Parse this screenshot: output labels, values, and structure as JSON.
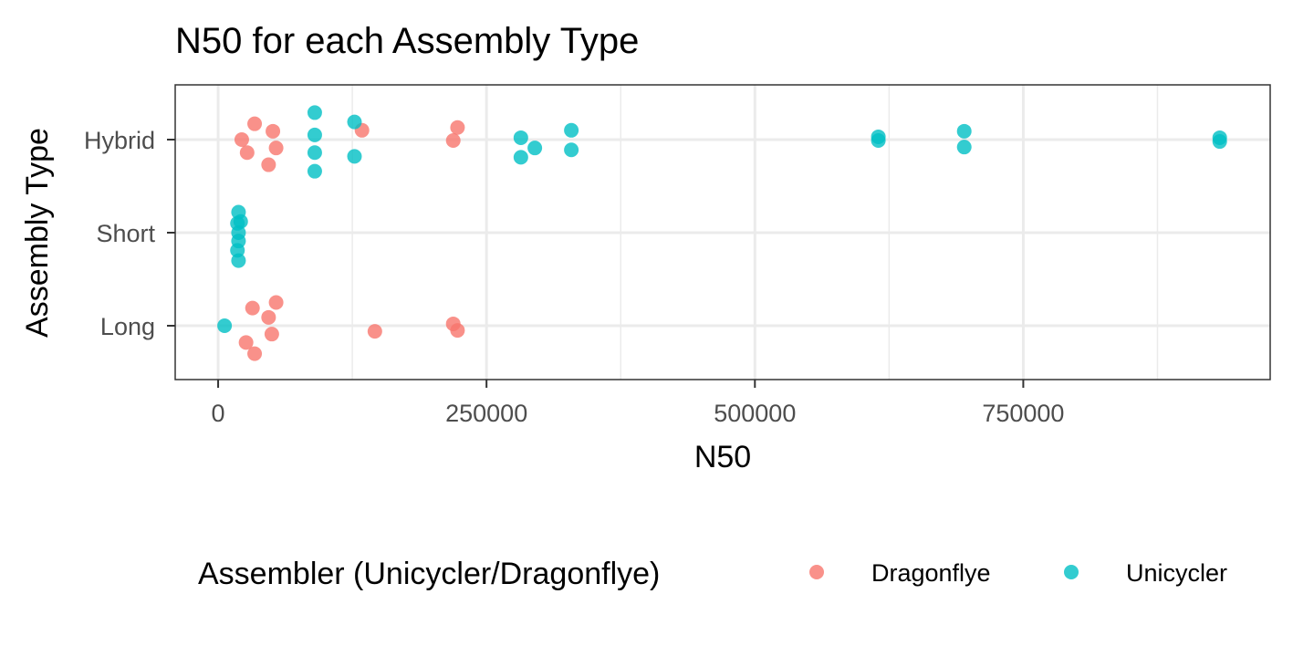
{
  "chart_data": {
    "type": "scatter",
    "title": "N50 for each Assembly Type",
    "xlabel": "N50",
    "ylabel": "Assembly Type",
    "categories": [
      "Long",
      "Short",
      "Hybrid"
    ],
    "xlim": [
      -40000,
      980000
    ],
    "x_ticks": [
      0,
      250000,
      500000,
      750000
    ],
    "x_tick_labels": [
      "0",
      "250000",
      "500000",
      "750000"
    ],
    "grid": true,
    "legend_title": "Assembler (Unicycler/Dragonflye)",
    "legend_position": "bottom",
    "series": [
      {
        "name": "Dragonflye",
        "color": "#F8766D",
        "points": [
          {
            "category": "Hybrid",
            "x": 34000,
            "jitter": 0.17
          },
          {
            "category": "Hybrid",
            "x": 51000,
            "jitter": 0.09
          },
          {
            "category": "Hybrid",
            "x": 22000,
            "jitter": 0.0
          },
          {
            "category": "Hybrid",
            "x": 54000,
            "jitter": -0.09
          },
          {
            "category": "Hybrid",
            "x": 27000,
            "jitter": -0.14
          },
          {
            "category": "Hybrid",
            "x": 47000,
            "jitter": -0.27
          },
          {
            "category": "Hybrid",
            "x": 134000,
            "jitter": 0.1
          },
          {
            "category": "Hybrid",
            "x": 223000,
            "jitter": 0.13
          },
          {
            "category": "Hybrid",
            "x": 219000,
            "jitter": -0.01
          },
          {
            "category": "Long",
            "x": 54000,
            "jitter": 0.25
          },
          {
            "category": "Long",
            "x": 32000,
            "jitter": 0.19
          },
          {
            "category": "Long",
            "x": 47000,
            "jitter": 0.09
          },
          {
            "category": "Long",
            "x": 219000,
            "jitter": 0.02
          },
          {
            "category": "Long",
            "x": 223000,
            "jitter": -0.05
          },
          {
            "category": "Long",
            "x": 146000,
            "jitter": -0.06
          },
          {
            "category": "Long",
            "x": 50000,
            "jitter": -0.09
          },
          {
            "category": "Long",
            "x": 26000,
            "jitter": -0.18
          },
          {
            "category": "Long",
            "x": 34000,
            "jitter": -0.3
          }
        ]
      },
      {
        "name": "Unicycler",
        "color": "#00BFC4",
        "points": [
          {
            "category": "Hybrid",
            "x": 90000,
            "jitter": 0.29
          },
          {
            "category": "Hybrid",
            "x": 90000,
            "jitter": 0.05
          },
          {
            "category": "Hybrid",
            "x": 90000,
            "jitter": -0.14
          },
          {
            "category": "Hybrid",
            "x": 90000,
            "jitter": -0.34
          },
          {
            "category": "Hybrid",
            "x": 127000,
            "jitter": 0.19
          },
          {
            "category": "Hybrid",
            "x": 127000,
            "jitter": -0.18
          },
          {
            "category": "Hybrid",
            "x": 282000,
            "jitter": 0.02
          },
          {
            "category": "Hybrid",
            "x": 295000,
            "jitter": -0.09
          },
          {
            "category": "Hybrid",
            "x": 282000,
            "jitter": -0.19
          },
          {
            "category": "Hybrid",
            "x": 329000,
            "jitter": 0.1
          },
          {
            "category": "Hybrid",
            "x": 329000,
            "jitter": -0.11
          },
          {
            "category": "Hybrid",
            "x": 615000,
            "jitter": 0.03
          },
          {
            "category": "Hybrid",
            "x": 615000,
            "jitter": -0.01
          },
          {
            "category": "Hybrid",
            "x": 695000,
            "jitter": 0.09
          },
          {
            "category": "Hybrid",
            "x": 695000,
            "jitter": -0.08
          },
          {
            "category": "Hybrid",
            "x": 933000,
            "jitter": 0.02
          },
          {
            "category": "Hybrid",
            "x": 933000,
            "jitter": -0.02
          },
          {
            "category": "Short",
            "x": 19000,
            "jitter": 0.22
          },
          {
            "category": "Short",
            "x": 21000,
            "jitter": 0.12
          },
          {
            "category": "Short",
            "x": 18000,
            "jitter": 0.1
          },
          {
            "category": "Short",
            "x": 19000,
            "jitter": 0.0
          },
          {
            "category": "Short",
            "x": 19000,
            "jitter": -0.09
          },
          {
            "category": "Short",
            "x": 18000,
            "jitter": -0.19
          },
          {
            "category": "Short",
            "x": 19000,
            "jitter": -0.3
          },
          {
            "category": "Long",
            "x": 6000,
            "jitter": 0.0
          }
        ]
      }
    ]
  }
}
